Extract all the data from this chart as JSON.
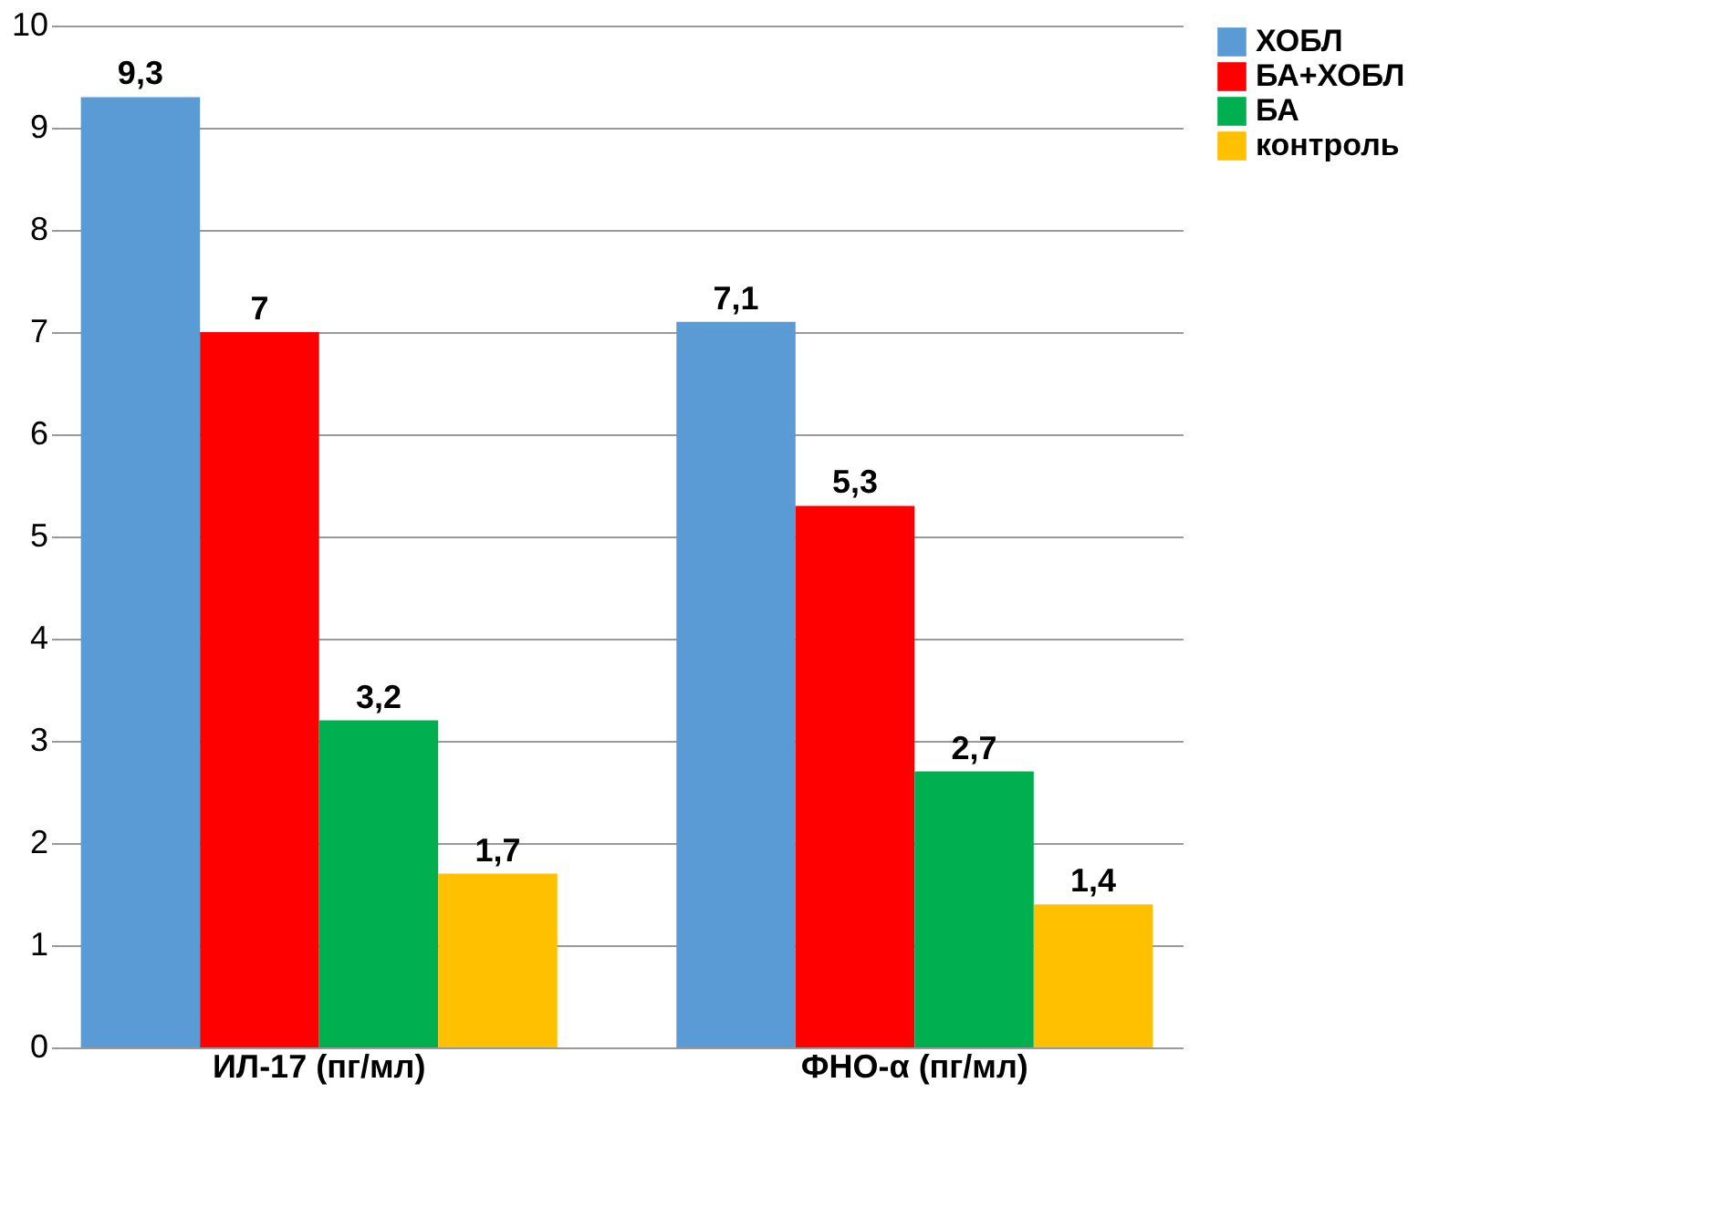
{
  "chart_data": {
    "type": "bar",
    "categories": [
      "ИЛ-17 (пг/мл)",
      "ФНО-α (пг/мл)"
    ],
    "series": [
      {
        "name": "ХОБЛ",
        "color": "#5b9bd5",
        "values": [
          9.3,
          7.1
        ],
        "value_labels": [
          "9,3",
          "7,1"
        ]
      },
      {
        "name": "БА+ХОБЛ",
        "color": "#ff0000",
        "values": [
          7,
          5.3
        ],
        "value_labels": [
          "7",
          "5,3"
        ]
      },
      {
        "name": "БА",
        "color": "#00b050",
        "values": [
          3.2,
          2.7
        ],
        "value_labels": [
          "3,2",
          "2,7"
        ]
      },
      {
        "name": "контроль",
        "color": "#ffc000",
        "values": [
          1.7,
          1.4
        ],
        "value_labels": [
          "1,7",
          "1,4"
        ]
      }
    ],
    "ylim": [
      0,
      10
    ],
    "yticks": [
      0,
      1,
      2,
      3,
      4,
      5,
      6,
      7,
      8,
      9,
      10
    ],
    "grid": "y",
    "legend": "right"
  }
}
